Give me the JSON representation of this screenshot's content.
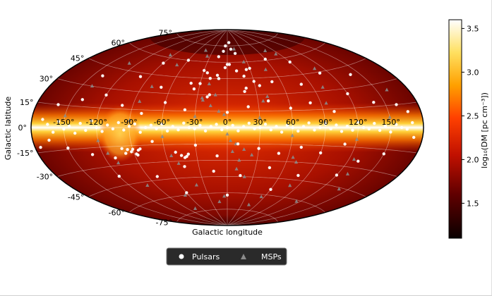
{
  "chart_data": {
    "type": "scatter",
    "projection": "aitoff",
    "xlabel": "Galactic longitude",
    "ylabel": "Galactic latitude",
    "longitude_ticks": [
      "-150°",
      "-120°",
      "-90°",
      "-60°",
      "-30°",
      "0°",
      "30°",
      "60°",
      "90°",
      "120°",
      "150°"
    ],
    "longitude_tick_values": [
      -150,
      -120,
      -90,
      -60,
      -30,
      0,
      30,
      60,
      90,
      120,
      150
    ],
    "latitude_ticks": [
      "75°",
      "60°",
      "45°",
      "30°",
      "15°",
      "0°",
      "-15°",
      "-30°",
      "-45°",
      "-60°",
      "-75°"
    ],
    "latitude_tick_values": [
      75,
      60,
      45,
      30,
      15,
      0,
      -15,
      -30,
      -45,
      -60,
      -75
    ],
    "grid": true,
    "background_map": "log10 DM sky model",
    "colorbar": {
      "label": "log₁₀(DM [pc cm⁻³])",
      "range": [
        1.1,
        3.6
      ],
      "ticks": [
        "1.5",
        "2.0",
        "2.5",
        "3.0",
        "3.5"
      ],
      "tick_values": [
        1.5,
        2.0,
        2.5,
        3.0,
        3.5
      ],
      "colormap": "hot"
    },
    "legend": {
      "placement": "bottom-center",
      "entries": [
        {
          "name": "Pulsars",
          "marker": "circle",
          "color": "#ffffff"
        },
        {
          "name": "MSPs",
          "marker": "triangle",
          "color": "#8a8a8a"
        }
      ]
    },
    "series": [
      {
        "name": "Pulsars",
        "x": [
          -165,
          -160,
          -155,
          -150,
          -145,
          -140,
          -135,
          -130,
          -125,
          -120,
          -115,
          -110,
          -105,
          -100,
          -95,
          -90,
          -85,
          -80,
          -75,
          -70,
          -65,
          -60,
          -55,
          -50,
          -45,
          -40,
          -35,
          -30,
          -25,
          -20,
          -15,
          -10,
          -5,
          0,
          5,
          10,
          15,
          20,
          25,
          30,
          35,
          40,
          45,
          50,
          55,
          60,
          65,
          70,
          75,
          80,
          85,
          90,
          95,
          100,
          105,
          110,
          115,
          120,
          125,
          130,
          135,
          140,
          145,
          150,
          155,
          160,
          165,
          170,
          -160,
          -140,
          -120,
          -100,
          -80,
          -60,
          -40,
          -20,
          0,
          20,
          40,
          60,
          80,
          100,
          120,
          140,
          160,
          -150,
          -130,
          -110,
          -90,
          -70,
          -50,
          -30,
          -10,
          10,
          30,
          50,
          70,
          90,
          110,
          130,
          150,
          -140,
          -100,
          -70,
          -40,
          -10,
          20,
          50,
          80,
          110,
          140,
          -120,
          -80,
          -45,
          -15,
          15,
          45,
          80,
          120,
          -90,
          -60,
          -30,
          0,
          30,
          60,
          90,
          -60,
          0,
          60,
          -95,
          -92,
          -88,
          -85,
          -98,
          -100,
          -87,
          -83,
          -45,
          -42,
          -40,
          -38,
          -170,
          -165,
          168,
          172,
          -175,
          -5,
          5,
          -8,
          8,
          -12,
          12,
          -3,
          3,
          -20,
          20,
          -25,
          25,
          -30,
          30,
          -35,
          35,
          -15,
          15,
          -18,
          18
        ],
        "y": [
          2,
          -3,
          4,
          -1,
          1,
          -4,
          3,
          -2,
          5,
          0,
          -3,
          2,
          -1,
          4,
          -2,
          1,
          3,
          -4,
          0,
          2,
          -1,
          3,
          -3,
          1,
          -2,
          4,
          0,
          -1,
          2,
          -3,
          1,
          3,
          -2,
          0,
          2,
          -3,
          1,
          4,
          -1,
          0,
          3,
          -2,
          1,
          -4,
          2,
          0,
          -3,
          1,
          4,
          -2,
          0,
          3,
          -1,
          2,
          -3,
          1,
          -2,
          4,
          0,
          -1,
          3,
          -2,
          1,
          -3,
          2,
          0,
          -1,
          3,
          15,
          20,
          25,
          18,
          12,
          22,
          16,
          28,
          14,
          19,
          24,
          17,
          21,
          13,
          26,
          18,
          15,
          -14,
          -20,
          -24,
          -18,
          -12,
          -22,
          -16,
          -26,
          -15,
          -19,
          -23,
          -17,
          -21,
          -13,
          -25,
          -18,
          38,
          42,
          35,
          40,
          45,
          36,
          41,
          37,
          44,
          39,
          -38,
          -42,
          -35,
          -40,
          -44,
          -36,
          -41,
          -37,
          55,
          60,
          52,
          58,
          54,
          61,
          56,
          -58,
          -62,
          -55,
          -18,
          -20,
          -22,
          -19,
          -21,
          -17,
          -23,
          -18,
          -25,
          -27,
          -26,
          -24,
          5,
          -8,
          10,
          -6,
          -12,
          75,
          78,
          70,
          72,
          48,
          52,
          55,
          58,
          45,
          47,
          50,
          53,
          40,
          42,
          35,
          38,
          65,
          68,
          30,
          33
        ]
      },
      {
        "name": "MSPs",
        "x": [
          -150,
          -120,
          -90,
          -60,
          -30,
          0,
          30,
          60,
          90,
          120,
          150,
          -140,
          -110,
          -80,
          -50,
          -20,
          10,
          40,
          70,
          100,
          130,
          160,
          -130,
          -100,
          -70,
          -40,
          -10,
          20,
          50,
          80,
          110,
          140,
          -115,
          -85,
          -55,
          -25,
          5,
          35,
          65,
          95,
          125,
          -95,
          -65,
          -35,
          -5,
          25,
          55,
          85,
          115,
          -75,
          -45,
          -15,
          15,
          45,
          75,
          -8,
          8,
          -16,
          16,
          -24,
          24,
          -3,
          3,
          -12,
          12
        ],
        "y": [
          8,
          -10,
          6,
          -8,
          10,
          -6,
          9,
          -7,
          5,
          -9,
          7,
          30,
          -28,
          35,
          -32,
          40,
          -38,
          28,
          -30,
          33,
          -35,
          25,
          50,
          -48,
          55,
          -52,
          45,
          -45,
          52,
          -50,
          48,
          -46,
          -20,
          22,
          -25,
          27,
          -22,
          24,
          -26,
          20,
          -24,
          62,
          -60,
          65,
          -63,
          60,
          -62,
          64,
          -61,
          -72,
          70,
          -68,
          72,
          -70,
          68,
          15,
          -15,
          20,
          -20,
          25,
          -25,
          12,
          -12,
          30,
          -30
        ]
      }
    ]
  }
}
